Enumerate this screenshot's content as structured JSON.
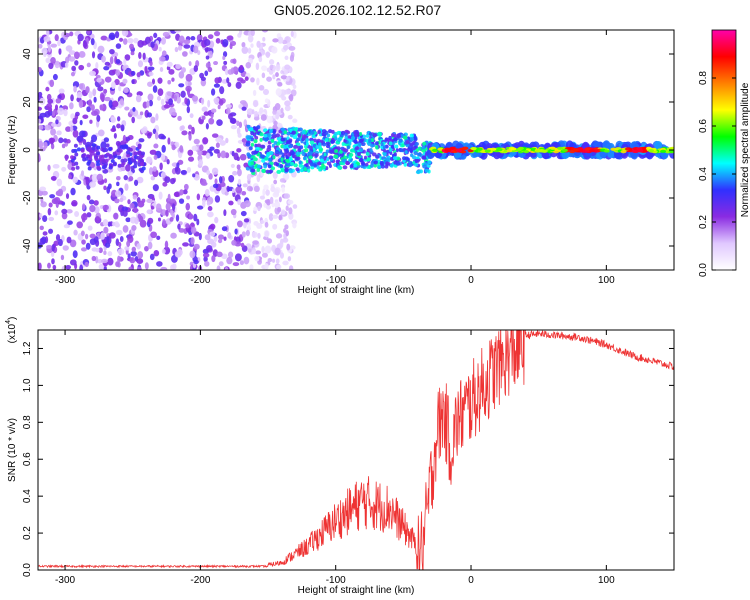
{
  "chart_data": [
    {
      "type": "heatmap",
      "title": "GN05.2026.102.12.52.R07",
      "xlabel": "Height of straight line (km)",
      "ylabel": "Frequency (Hz)",
      "xlim": [
        -320,
        150
      ],
      "ylim": [
        -50,
        50
      ],
      "xticks": [
        -300,
        -200,
        -100,
        0,
        100
      ],
      "yticks": [
        -40,
        -20,
        0,
        20,
        40
      ],
      "colorbar": {
        "label": "Normalized spectral amplitude",
        "range": [
          0,
          1
        ],
        "ticks": [
          0.0,
          0.2,
          0.4,
          0.6,
          0.8
        ],
        "colors": [
          "#ffffff",
          "#e0c8ff",
          "#8a2be2",
          "#3030ff",
          "#00ffff",
          "#00ff00",
          "#ffff00",
          "#ff8000",
          "#ff0000",
          "#ff00aa"
        ]
      },
      "regions": [
        {
          "name": "noise scatter",
          "x_range": [
            -320,
            -150
          ],
          "freq_range": [
            -50,
            50
          ],
          "amplitude": 0.2
        },
        {
          "name": "noisy signal band",
          "x_range": [
            -165,
            -30
          ],
          "freq_range": [
            -12,
            10
          ],
          "amplitude": 0.35
        },
        {
          "name": "clean signal line",
          "x_range": [
            -30,
            150
          ],
          "freq_center": 0,
          "amplitude": 0.75
        }
      ]
    },
    {
      "type": "line",
      "xlabel": "Height of straight line (km)",
      "ylabel": "SNR (10 * v/v)",
      "multiplier_label": "(x10",
      "multiplier_exp": "4",
      "multiplier_close": ")",
      "xlim": [
        -320,
        150
      ],
      "ylim": [
        0,
        1.3
      ],
      "xticks": [
        -300,
        -200,
        -100,
        0,
        100
      ],
      "yticks": [
        "0.0",
        "0.2",
        "0.4",
        "0.6",
        "0.8",
        "1.0",
        "1.2"
      ],
      "series": [
        {
          "name": "SNR",
          "color": "#ee3333",
          "x": [
            -320,
            -250,
            -200,
            -150,
            -140,
            -120,
            -100,
            -80,
            -60,
            -40,
            -35,
            -30,
            -25,
            -20,
            -15,
            -10,
            0,
            10,
            20,
            30,
            40,
            50,
            80,
            100,
            120,
            150
          ],
          "values": [
            0.02,
            0.02,
            0.02,
            0.02,
            0.03,
            0.1,
            0.2,
            0.28,
            0.25,
            0.1,
            0.2,
            0.5,
            0.8,
            0.9,
            0.7,
            0.85,
            0.95,
            1.05,
            1.15,
            1.22,
            1.27,
            1.28,
            1.26,
            1.22,
            1.16,
            1.1
          ]
        }
      ]
    }
  ]
}
